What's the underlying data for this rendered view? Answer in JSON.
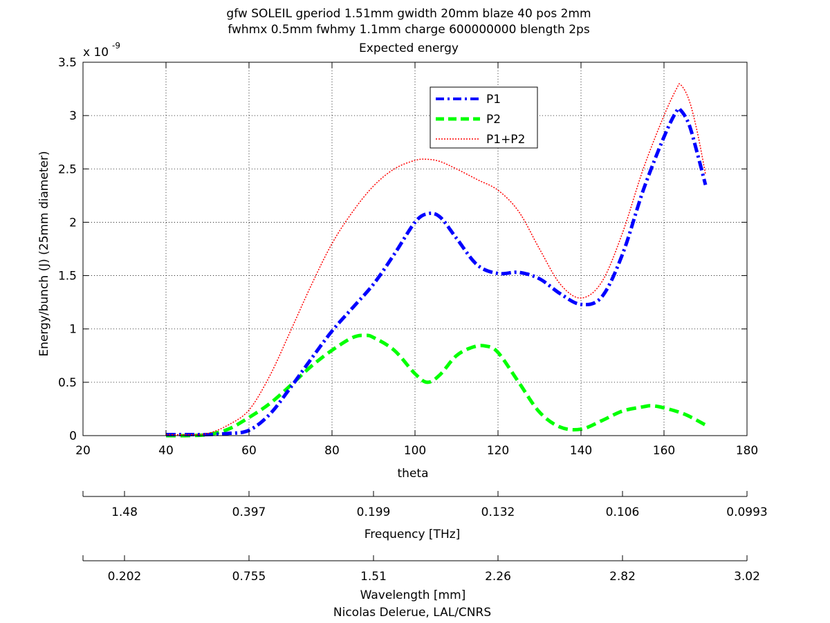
{
  "chart_data": {
    "type": "line",
    "title_lines": [
      "gfw SOLEIL gperiod 1.51mm gwidth 20mm blaze 40 pos 2mm",
      "fwhmx 0.5mm fwhmy 1.1mm charge 600000000 blength 2ps",
      "Expected energy"
    ],
    "y_scale_base": "x 10",
    "y_scale_exponent": "-9",
    "xlabel": "theta",
    "ylabel": "Energy/bunch (J) (25mm diameter)",
    "xlim": [
      20,
      180
    ],
    "ylim": [
      0,
      3.5
    ],
    "x_ticks": [
      20,
      40,
      60,
      80,
      100,
      120,
      140,
      160,
      180
    ],
    "x_tick_labels": [
      "20",
      "40",
      "60",
      "80",
      "100",
      "120",
      "140",
      "160",
      "180"
    ],
    "y_ticks": [
      0,
      0.5,
      1,
      1.5,
      2,
      2.5,
      3,
      3.5
    ],
    "y_tick_labels": [
      "0",
      "0.5",
      "1",
      "1.5",
      "2",
      "2.5",
      "3",
      "3.5"
    ],
    "grid": true,
    "legend_position": "top-center",
    "series": [
      {
        "name": "P1",
        "color": "#0000ff",
        "style": "dash-dot",
        "x": [
          40,
          45,
          50,
          55,
          60,
          65,
          70,
          75,
          80,
          85,
          90,
          95,
          100,
          103,
          106,
          110,
          115,
          120,
          125,
          130,
          135,
          140,
          145,
          150,
          155,
          160,
          163,
          164,
          166,
          168,
          170
        ],
        "y": [
          0.01,
          0.01,
          0.01,
          0.02,
          0.05,
          0.2,
          0.45,
          0.72,
          0.98,
          1.2,
          1.42,
          1.7,
          2.0,
          2.08,
          2.05,
          1.85,
          1.6,
          1.52,
          1.53,
          1.47,
          1.33,
          1.23,
          1.3,
          1.7,
          2.3,
          2.8,
          3.04,
          3.05,
          2.92,
          2.65,
          2.35
        ]
      },
      {
        "name": "P2",
        "color": "#00ff00",
        "style": "dashed",
        "x": [
          40,
          45,
          50,
          55,
          60,
          65,
          70,
          75,
          80,
          85,
          88,
          90,
          95,
          100,
          103,
          106,
          110,
          114,
          117,
          120,
          125,
          130,
          135,
          140,
          145,
          150,
          155,
          157,
          160,
          165,
          170
        ],
        "y": [
          0.0,
          0.0,
          0.01,
          0.06,
          0.17,
          0.3,
          0.47,
          0.65,
          0.8,
          0.92,
          0.94,
          0.92,
          0.8,
          0.58,
          0.5,
          0.57,
          0.75,
          0.83,
          0.84,
          0.78,
          0.5,
          0.22,
          0.08,
          0.06,
          0.14,
          0.23,
          0.27,
          0.28,
          0.26,
          0.2,
          0.1
        ]
      },
      {
        "name": "P1+P2",
        "color": "#ff0000",
        "style": "dotted",
        "x": [
          40,
          45,
          50,
          55,
          60,
          65,
          70,
          75,
          80,
          85,
          90,
          95,
          100,
          103,
          106,
          110,
          115,
          120,
          125,
          130,
          135,
          140,
          145,
          150,
          155,
          160,
          163,
          164,
          166,
          168,
          170
        ],
        "y": [
          0.01,
          0.01,
          0.02,
          0.1,
          0.24,
          0.56,
          0.98,
          1.41,
          1.8,
          2.1,
          2.34,
          2.5,
          2.58,
          2.59,
          2.57,
          2.5,
          2.4,
          2.3,
          2.1,
          1.75,
          1.42,
          1.29,
          1.44,
          1.9,
          2.5,
          3.0,
          3.25,
          3.29,
          3.15,
          2.85,
          2.45
        ]
      }
    ],
    "secondary_axes": [
      {
        "label": "Frequency [THz]",
        "tick_labels": [
          "1.48",
          "0.397",
          "0.199",
          "0.132",
          "0.106",
          "0.0993"
        ]
      },
      {
        "label": "Wavelength [mm]",
        "tick_labels": [
          "0.202",
          "0.755",
          "1.51",
          "2.26",
          "2.82",
          "3.02"
        ]
      }
    ],
    "credit": "Nicolas Delerue, LAL/CNRS"
  }
}
